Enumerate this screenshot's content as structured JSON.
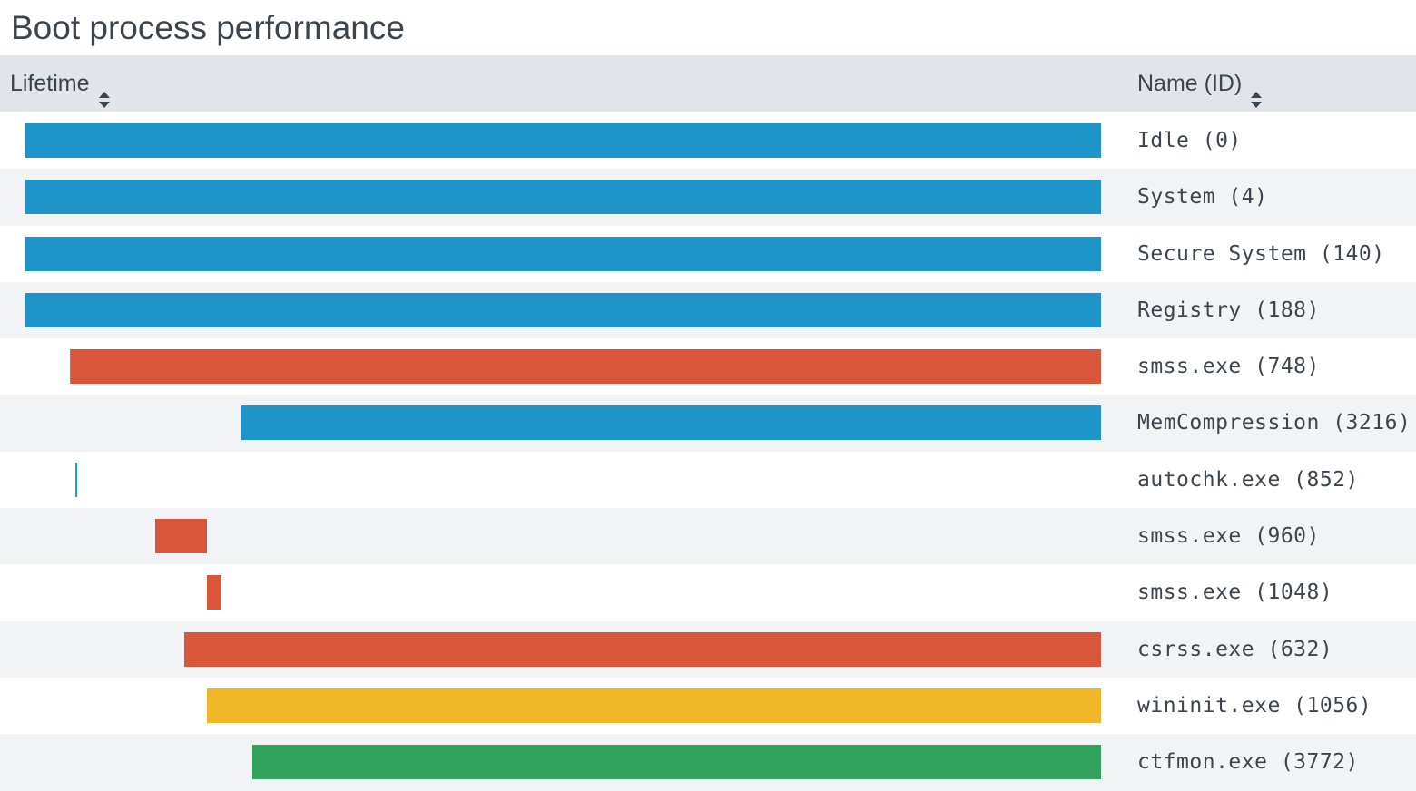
{
  "title": "Boot process performance",
  "columns": {
    "lifetime": "Lifetime",
    "name": "Name (ID)"
  },
  "colors": {
    "blue": "#1f94c8",
    "red": "#d9563a",
    "yellow": "#f0b728",
    "green": "#31a35f",
    "header_bg": "#e1e5e9",
    "alt_row_bg": "#f2f3f5"
  },
  "chart_data": {
    "type": "bar",
    "orientation": "horizontal-range",
    "x_range": [
      0,
      1
    ],
    "rows": [
      {
        "label": "Idle (0)",
        "start": 0.0,
        "end": 1.0,
        "color": "blue"
      },
      {
        "label": "System (4)",
        "start": 0.0,
        "end": 1.0,
        "color": "blue"
      },
      {
        "label": "Secure System (140)",
        "start": 0.0,
        "end": 1.0,
        "color": "blue"
      },
      {
        "label": "Registry (188)",
        "start": 0.0,
        "end": 1.0,
        "color": "blue"
      },
      {
        "label": "smss.exe (748)",
        "start": 0.0414,
        "end": 1.0,
        "color": "red"
      },
      {
        "label": "MemCompression (3216)",
        "start": 0.2008,
        "end": 1.0,
        "color": "blue"
      },
      {
        "label": "autochk.exe (852)",
        "start": 0.0473,
        "end": 0.0473,
        "color": "blue"
      },
      {
        "label": "smss.exe (960)",
        "start": 0.1207,
        "end": 0.1688,
        "color": "red"
      },
      {
        "label": "smss.exe (1048)",
        "start": 0.1688,
        "end": 0.1823,
        "color": "red"
      },
      {
        "label": "csrss.exe (632)",
        "start": 0.1477,
        "end": 1.0,
        "color": "red"
      },
      {
        "label": "wininit.exe (1056)",
        "start": 0.1688,
        "end": 1.0,
        "color": "yellow"
      },
      {
        "label": "ctfmon.exe (3772)",
        "start": 0.211,
        "end": 1.0,
        "color": "green"
      }
    ]
  }
}
